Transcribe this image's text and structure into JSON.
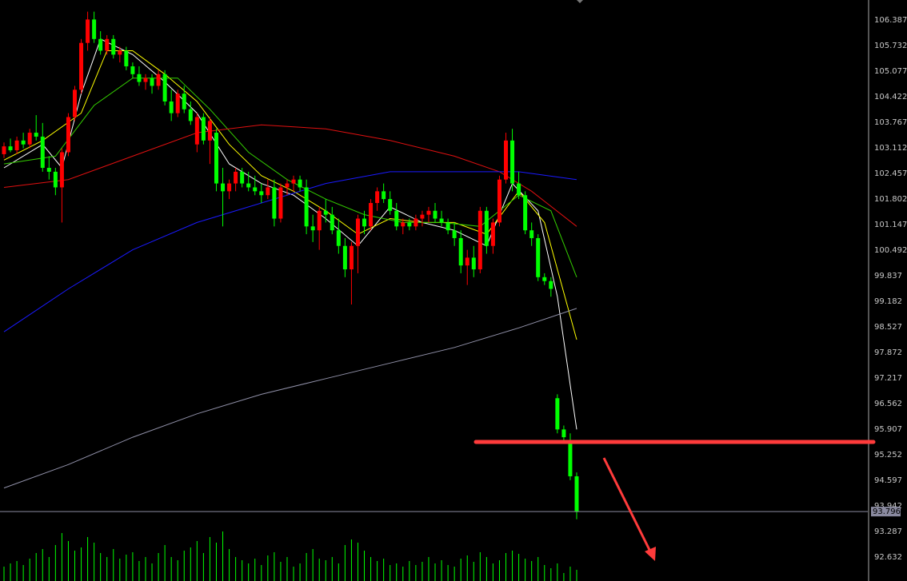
{
  "chart_data": {
    "type": "candlestick",
    "categories": [
      null,
      null,
      null,
      null,
      null,
      null,
      null,
      null,
      null,
      null,
      null,
      null,
      null,
      null,
      null,
      null,
      null,
      null,
      null,
      null,
      null,
      null,
      null,
      null,
      null,
      null,
      null,
      null,
      null,
      null,
      null,
      null,
      null,
      null,
      null,
      null,
      null,
      null,
      null,
      null,
      null,
      null,
      null,
      null,
      null,
      null,
      null,
      null,
      null,
      null,
      null,
      null,
      null,
      null,
      null,
      null,
      null,
      null,
      null,
      null,
      null,
      null,
      null,
      null,
      null,
      null,
      null,
      null,
      null,
      null,
      null,
      null,
      null,
      null,
      null,
      null,
      null,
      null,
      null,
      null,
      null,
      null,
      null,
      null,
      null,
      null,
      null,
      null,
      null,
      null
    ],
    "open": [
      102.95,
      103.15,
      103.05,
      103.3,
      103.2,
      103.5,
      103.4,
      102.6,
      102.5,
      102.1,
      103.0,
      103.9,
      104.6,
      105.8,
      106.4,
      105.9,
      105.6,
      105.9,
      105.5,
      105.6,
      105.2,
      105.0,
      104.8,
      104.9,
      104.7,
      105.0,
      104.3,
      104.0,
      104.5,
      104.1,
      103.2,
      103.9,
      103.3,
      103.5,
      102.2,
      102.0,
      102.2,
      102.5,
      102.2,
      102.1,
      102.0,
      101.9,
      102.1,
      101.3,
      102.1,
      102.2,
      102.3,
      102.1,
      101.1,
      101.0,
      101.5,
      101.4,
      101.0,
      100.6,
      100.0,
      100.6,
      101.3,
      101.1,
      101.7,
      102.0,
      101.8,
      101.5,
      101.1,
      101.2,
      101.1,
      101.3,
      101.4,
      101.5,
      101.3,
      101.2,
      101.0,
      100.8,
      100.1,
      100.3,
      100.0,
      101.5,
      100.6,
      101.2,
      102.3,
      103.3,
      102.2,
      101.9,
      101.0,
      100.8,
      99.8,
      99.7,
      96.7,
      95.9,
      95.6,
      94.7
    ],
    "high": [
      103.25,
      103.35,
      103.4,
      103.5,
      103.6,
      103.95,
      103.75,
      102.9,
      102.6,
      103.1,
      104.0,
      104.7,
      105.9,
      106.6,
      106.6,
      106.1,
      106.0,
      106.0,
      105.7,
      105.7,
      105.3,
      105.2,
      105.0,
      105.0,
      105.1,
      105.1,
      104.6,
      104.6,
      104.7,
      104.3,
      104.0,
      104.0,
      103.9,
      103.6,
      102.6,
      102.3,
      102.6,
      102.6,
      102.5,
      102.4,
      102.2,
      102.3,
      102.3,
      102.2,
      102.3,
      102.4,
      102.4,
      102.3,
      101.4,
      101.6,
      101.8,
      101.6,
      101.3,
      100.8,
      100.7,
      101.4,
      101.5,
      101.8,
      102.1,
      102.2,
      102.0,
      101.7,
      101.3,
      101.3,
      101.4,
      101.5,
      101.6,
      101.7,
      101.5,
      101.3,
      101.2,
      101.0,
      100.5,
      100.6,
      101.6,
      101.6,
      101.3,
      102.4,
      103.5,
      103.6,
      102.5,
      102.0,
      101.2,
      100.9,
      99.9,
      99.8,
      96.8,
      96.0,
      95.8,
      94.8
    ],
    "low": [
      102.85,
      103.0,
      102.95,
      103.1,
      103.1,
      103.3,
      102.5,
      102.3,
      101.9,
      101.2,
      102.9,
      103.8,
      104.5,
      105.6,
      105.8,
      105.5,
      105.5,
      105.4,
      105.3,
      105.1,
      104.9,
      104.7,
      104.6,
      104.5,
      104.6,
      104.2,
      103.8,
      103.9,
      104.0,
      103.7,
      103.0,
      103.2,
      102.7,
      102.0,
      101.1,
      101.8,
      102.0,
      102.1,
      102.0,
      101.9,
      101.7,
      101.8,
      101.1,
      101.2,
      101.9,
      102.0,
      102.0,
      100.9,
      100.7,
      100.5,
      101.2,
      100.9,
      100.4,
      99.8,
      99.1,
      99.9,
      100.9,
      101.0,
      101.5,
      101.7,
      101.4,
      101.0,
      100.9,
      101.0,
      101.0,
      101.1,
      101.2,
      101.2,
      101.1,
      100.9,
      100.6,
      99.9,
      99.6,
      99.8,
      99.9,
      100.4,
      100.4,
      101.1,
      102.2,
      102.0,
      101.8,
      100.9,
      100.6,
      99.7,
      99.6,
      99.3,
      95.8,
      95.6,
      94.6,
      93.6
    ],
    "close": [
      103.15,
      103.05,
      103.3,
      103.2,
      103.5,
      103.4,
      102.6,
      102.5,
      102.1,
      103.0,
      103.9,
      104.6,
      105.8,
      106.4,
      105.9,
      105.6,
      105.9,
      105.5,
      105.6,
      105.2,
      105.0,
      104.8,
      104.9,
      104.7,
      105.0,
      104.3,
      104.0,
      104.5,
      104.1,
      103.8,
      103.9,
      103.3,
      103.8,
      102.2,
      102.0,
      102.2,
      102.5,
      102.2,
      102.1,
      102.0,
      101.9,
      102.1,
      101.3,
      102.1,
      102.2,
      102.3,
      102.1,
      101.1,
      101.0,
      101.5,
      101.4,
      101.0,
      100.6,
      100.0,
      100.6,
      101.3,
      101.1,
      101.7,
      102.0,
      101.8,
      101.5,
      101.1,
      101.2,
      101.1,
      101.3,
      101.4,
      101.5,
      101.3,
      101.2,
      101.0,
      100.8,
      100.1,
      100.3,
      100.0,
      101.5,
      100.6,
      101.2,
      102.3,
      103.3,
      102.2,
      101.9,
      101.0,
      100.8,
      99.8,
      99.7,
      99.5,
      95.9,
      95.7,
      94.7,
      93.8
    ],
    "up_color": "#ff0000",
    "down_color": "#00ff00",
    "volume": [
      18,
      22,
      25,
      20,
      28,
      35,
      40,
      30,
      45,
      60,
      50,
      38,
      42,
      55,
      48,
      35,
      30,
      40,
      28,
      33,
      36,
      25,
      30,
      22,
      35,
      45,
      30,
      26,
      38,
      42,
      50,
      35,
      55,
      48,
      62,
      40,
      30,
      26,
      22,
      28,
      20,
      32,
      36,
      24,
      30,
      18,
      22,
      35,
      40,
      28,
      26,
      30,
      22,
      45,
      52,
      48,
      38,
      30,
      25,
      28,
      20,
      22,
      18,
      25,
      20,
      24,
      30,
      22,
      26,
      20,
      18,
      28,
      32,
      24,
      36,
      30,
      22,
      26,
      35,
      38,
      34,
      28,
      25,
      30,
      20,
      16,
      22,
      10,
      18,
      14
    ],
    "volume_lim": [
      0,
      100
    ],
    "volume_color": "#00ff00",
    "overlays": [
      {
        "color": "#ffffff",
        "x": [
          0,
          6,
          9,
          12,
          15,
          20,
          25,
          30,
          35,
          40,
          45,
          50,
          55,
          60,
          65,
          70,
          75,
          79,
          83,
          86,
          89
        ],
        "values": [
          102.6,
          103.2,
          102.6,
          104.5,
          105.9,
          105.5,
          104.8,
          104.0,
          102.7,
          102.2,
          101.9,
          101.3,
          100.6,
          101.6,
          101.2,
          101.0,
          100.6,
          102.2,
          101.5,
          99.3,
          95.9
        ]
      },
      {
        "color": "#ffff00",
        "x": [
          0,
          6,
          12,
          16,
          20,
          25,
          30,
          35,
          40,
          45,
          50,
          55,
          60,
          65,
          70,
          75,
          80,
          84,
          89
        ],
        "values": [
          102.8,
          103.3,
          104.0,
          105.6,
          105.6,
          105.0,
          104.3,
          103.2,
          102.4,
          102.0,
          101.5,
          100.9,
          101.3,
          101.2,
          101.2,
          100.9,
          102.0,
          101.2,
          98.2
        ]
      },
      {
        "color": "#33cc00",
        "x": [
          0,
          8,
          14,
          20,
          27,
          32,
          38,
          44,
          50,
          56,
          62,
          68,
          74,
          80,
          85,
          89
        ],
        "values": [
          102.7,
          102.9,
          104.2,
          104.9,
          104.9,
          104.1,
          103.0,
          102.3,
          101.8,
          101.4,
          101.2,
          101.2,
          101.1,
          101.9,
          101.5,
          99.8
        ]
      },
      {
        "color": "#e01010",
        "x": [
          0,
          10,
          20,
          30,
          40,
          50,
          60,
          70,
          77,
          82,
          89
        ],
        "values": [
          102.1,
          102.3,
          102.9,
          103.5,
          103.7,
          103.6,
          103.3,
          102.9,
          102.5,
          102.0,
          101.1
        ]
      },
      {
        "color": "#1a1aff",
        "x": [
          0,
          10,
          20,
          30,
          40,
          50,
          60,
          70,
          80,
          89
        ],
        "values": [
          98.4,
          99.5,
          100.5,
          101.2,
          101.7,
          102.2,
          102.5,
          102.5,
          102.5,
          102.3
        ]
      },
      {
        "color": "#9090a8",
        "x": [
          0,
          10,
          20,
          30,
          40,
          50,
          60,
          70,
          80,
          89
        ],
        "values": [
          94.4,
          95.0,
          95.7,
          96.3,
          96.8,
          97.2,
          97.6,
          98.0,
          98.5,
          99.0
        ]
      }
    ],
    "ylim": [
      92.018,
      106.899
    ],
    "yticks": [
      106.387,
      105.732,
      105.077,
      104.422,
      103.767,
      103.112,
      102.457,
      101.802,
      101.147,
      100.492,
      99.837,
      99.182,
      98.527,
      97.872,
      97.217,
      96.562,
      95.907,
      95.252,
      94.597,
      93.942,
      93.287,
      92.632
    ],
    "current_price": 93.796,
    "level": 95.58,
    "level_color": "#ff3b3b"
  }
}
